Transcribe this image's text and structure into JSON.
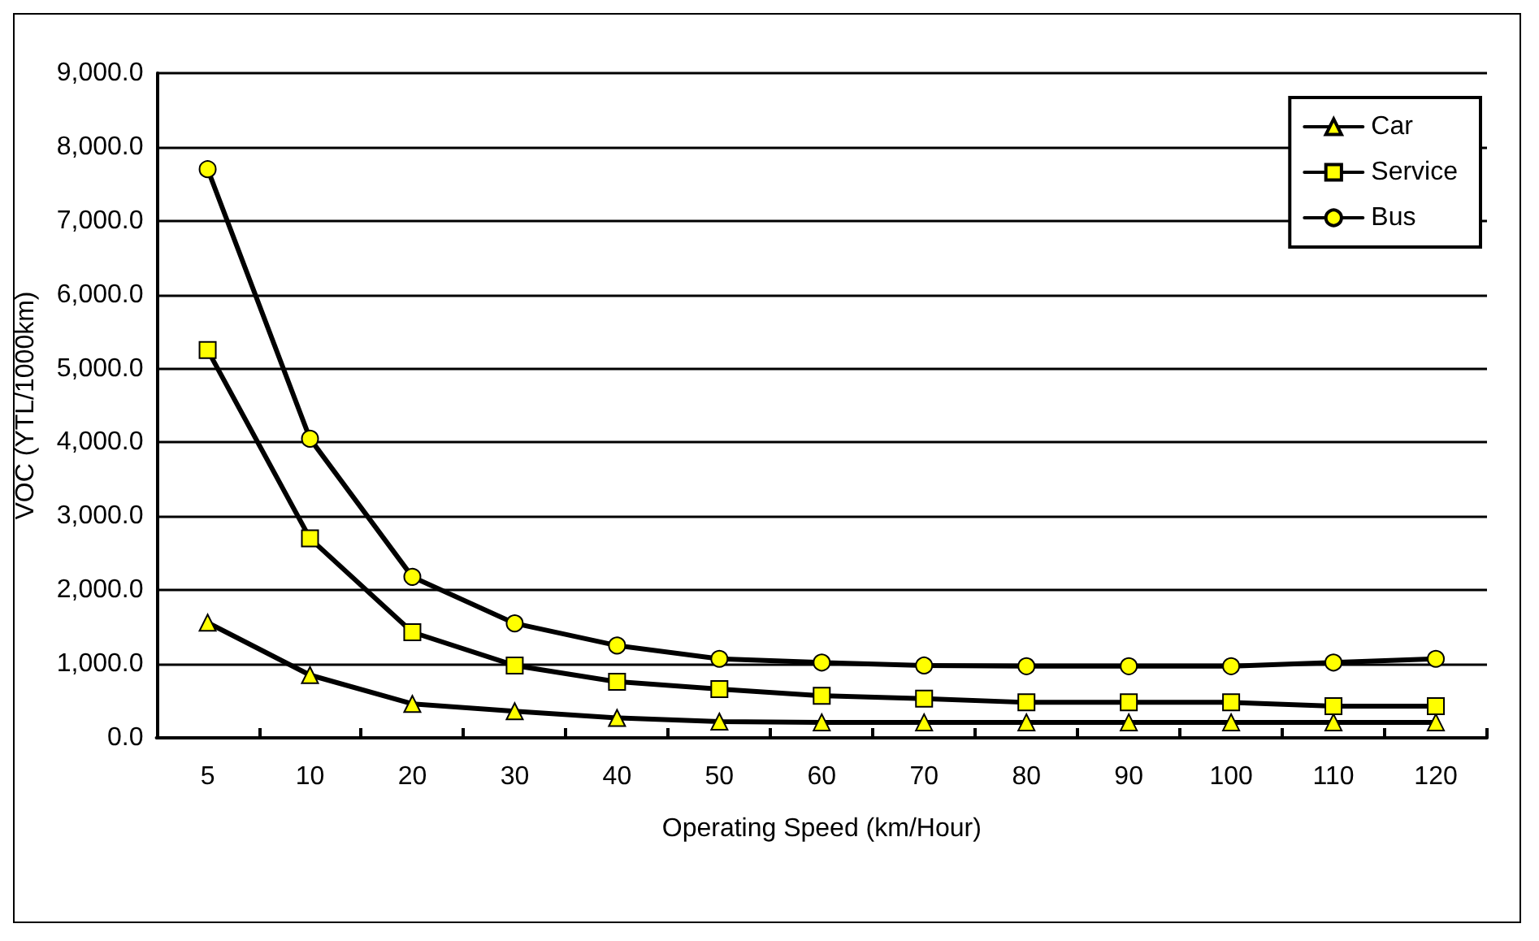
{
  "chart_data": {
    "type": "line",
    "xlabel": "Operating Speed (km/Hour)",
    "ylabel": "VOC (YTL/1000km)",
    "categories": [
      "5",
      "10",
      "20",
      "30",
      "40",
      "50",
      "60",
      "70",
      "80",
      "90",
      "100",
      "110",
      "120"
    ],
    "series": [
      {
        "name": "Car",
        "color": "#000000",
        "marker": "triangle",
        "values": [
          1560,
          850,
          460,
          360,
          270,
          220,
          210,
          210,
          210,
          210,
          210,
          210,
          210
        ]
      },
      {
        "name": "Service",
        "color": "#000000",
        "marker": "square",
        "values": [
          5250,
          2700,
          1430,
          980,
          760,
          660,
          570,
          530,
          480,
          480,
          480,
          430,
          430
        ]
      },
      {
        "name": "Bus",
        "color": "#000000",
        "marker": "circle",
        "values": [
          7700,
          4050,
          2180,
          1550,
          1250,
          1070,
          1020,
          980,
          970,
          970,
          970,
          1020,
          1070
        ]
      }
    ],
    "ylim": [
      0,
      9000
    ],
    "yticks": [
      {
        "value": 0,
        "label": "0.0"
      },
      {
        "value": 1000,
        "label": "1,000.0"
      },
      {
        "value": 2000,
        "label": "2,000.0"
      },
      {
        "value": 3000,
        "label": "3,000.0"
      },
      {
        "value": 4000,
        "label": "4,000.0"
      },
      {
        "value": 5000,
        "label": "5,000.0"
      },
      {
        "value": 6000,
        "label": "6,000.0"
      },
      {
        "value": 7000,
        "label": "7,000.0"
      },
      {
        "value": 8000,
        "label": "8,000.0"
      },
      {
        "value": 9000,
        "label": "9,000.0"
      }
    ],
    "grid": "y",
    "legend": "top right",
    "line_style": "solid"
  }
}
